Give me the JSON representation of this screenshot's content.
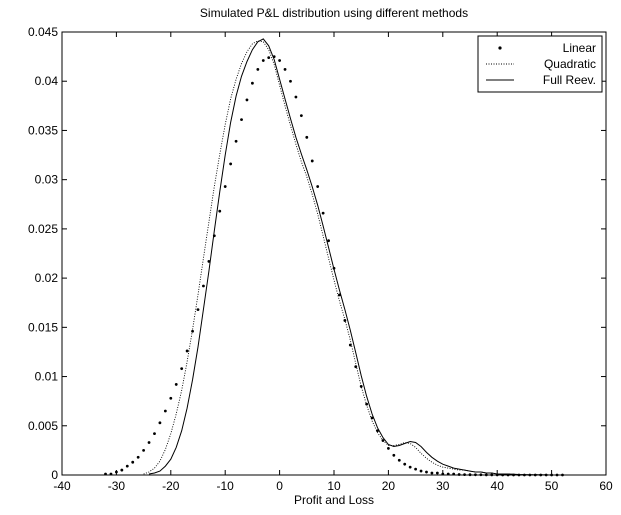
{
  "chart_data": {
    "type": "line",
    "title": "Simulated P&L distribution using different methods",
    "xlabel": "Profit and Loss",
    "ylabel": "",
    "xlim": [
      -40,
      60
    ],
    "ylim": [
      0,
      0.045
    ],
    "xticks": [
      -40,
      -30,
      -20,
      -10,
      0,
      10,
      20,
      30,
      40,
      50,
      60
    ],
    "yticks": [
      0,
      0.005,
      0.01,
      0.015,
      0.02,
      0.025,
      0.03,
      0.035,
      0.04,
      0.045
    ],
    "xtick_labels": [
      "-40",
      "-30",
      "-20",
      "-10",
      "0",
      "10",
      "20",
      "30",
      "40",
      "50",
      "60"
    ],
    "ytick_labels": [
      "0",
      "0.005",
      "0.01",
      "0.015",
      "0.02",
      "0.025",
      "0.03",
      "0.035",
      "0.04",
      "0.045"
    ],
    "grid": false,
    "legend_position": "top-right",
    "series": [
      {
        "name": "Linear",
        "style": "dots",
        "color": "#000000",
        "x": [
          -32,
          -31,
          -30,
          -29,
          -28,
          -27,
          -26,
          -25,
          -24,
          -23,
          -22,
          -21,
          -20,
          -19,
          -18,
          -17,
          -16,
          -15,
          -14,
          -13,
          -12,
          -11,
          -10,
          -9,
          -8,
          -7,
          -6,
          -5,
          -4,
          -3,
          -2,
          -1,
          0,
          1,
          2,
          3,
          4,
          5,
          6,
          7,
          8,
          9,
          10,
          11,
          12,
          13,
          14,
          15,
          16,
          17,
          18,
          19,
          20,
          21,
          22,
          23,
          24,
          25,
          26,
          27,
          28,
          29,
          30,
          31,
          32,
          33,
          34,
          35,
          36,
          37,
          38,
          39,
          40,
          41,
          42,
          43,
          44,
          45,
          46,
          47,
          48,
          49,
          50,
          51,
          52
        ],
        "y": [
          0.0001,
          0.0001,
          0.0003,
          0.0005,
          0.0009,
          0.0013,
          0.0018,
          0.0025,
          0.0033,
          0.0042,
          0.0053,
          0.0065,
          0.0078,
          0.0092,
          0.0108,
          0.0126,
          0.0146,
          0.0168,
          0.0192,
          0.0217,
          0.0243,
          0.0268,
          0.0293,
          0.0316,
          0.0339,
          0.0361,
          0.0381,
          0.0398,
          0.0412,
          0.0421,
          0.0424,
          0.0425,
          0.0421,
          0.0412,
          0.04,
          0.0384,
          0.0365,
          0.0343,
          0.0319,
          0.0293,
          0.0266,
          0.0238,
          0.021,
          0.0183,
          0.0157,
          0.0132,
          0.011,
          0.009,
          0.0072,
          0.0058,
          0.0045,
          0.0035,
          0.0027,
          0.002,
          0.0015,
          0.0011,
          0.0008,
          0.0006,
          0.0004,
          0.0003,
          0.0002,
          0.0002,
          0.0001,
          0.0001,
          0.0001,
          5e-05,
          4e-05,
          3e-05,
          2e-05,
          2e-05,
          1e-05,
          1e-05,
          1e-05,
          0,
          0,
          0,
          0,
          0,
          0,
          0,
          0,
          0,
          0,
          0,
          0
        ]
      },
      {
        "name": "Quadratic",
        "style": "dotted",
        "color": "#000000",
        "x": [
          -25,
          -24,
          -23,
          -22,
          -21,
          -20,
          -19,
          -18,
          -17,
          -16,
          -15,
          -14,
          -13,
          -12,
          -11,
          -10,
          -9,
          -8,
          -7,
          -6,
          -5,
          -4,
          -3,
          -2,
          -1,
          0,
          1,
          2,
          3,
          4,
          5,
          6,
          7,
          8,
          9,
          10,
          11,
          12,
          13,
          14,
          15,
          16,
          17,
          18,
          19,
          20,
          21,
          22,
          23,
          24,
          25,
          26,
          27,
          28,
          29,
          30,
          31,
          32,
          33,
          34,
          35,
          36,
          37,
          38,
          39,
          40,
          42,
          44,
          46,
          48,
          50
        ],
        "y": [
          0.0001,
          0.0003,
          0.0007,
          0.0014,
          0.0026,
          0.0042,
          0.0062,
          0.0086,
          0.0115,
          0.0148,
          0.0183,
          0.022,
          0.0257,
          0.0293,
          0.0326,
          0.0356,
          0.0382,
          0.0402,
          0.0418,
          0.043,
          0.0438,
          0.0441,
          0.044,
          0.0432,
          0.0417,
          0.0396,
          0.0375,
          0.0355,
          0.0336,
          0.0318,
          0.0303,
          0.0285,
          0.0265,
          0.0243,
          0.022,
          0.0198,
          0.0177,
          0.0158,
          0.0137,
          0.0113,
          0.009,
          0.0071,
          0.0055,
          0.0043,
          0.0035,
          0.003,
          0.003,
          0.0031,
          0.0033,
          0.0032,
          0.0028,
          0.0022,
          0.0017,
          0.0013,
          0.001,
          0.0008,
          0.0007,
          0.0006,
          0.0005,
          0.0005,
          0.0004,
          0.0003,
          0.0003,
          0.0002,
          0.0002,
          0.0001,
          0.0001,
          5e-05,
          3e-05,
          2e-05,
          0
        ]
      },
      {
        "name": "Full Reev.",
        "style": "solid",
        "color": "#000000",
        "x": [
          -24,
          -23,
          -22,
          -21,
          -20,
          -19,
          -18,
          -17,
          -16,
          -15,
          -14,
          -13,
          -12,
          -11,
          -10,
          -9,
          -8,
          -7,
          -6,
          -5,
          -4,
          -3,
          -2,
          -1,
          0,
          1,
          2,
          3,
          4,
          5,
          6,
          7,
          8,
          9,
          10,
          11,
          12,
          13,
          14,
          15,
          16,
          17,
          18,
          19,
          20,
          21,
          22,
          23,
          24,
          25,
          26,
          27,
          28,
          29,
          30,
          31,
          32,
          33,
          34,
          35,
          36,
          37,
          38,
          39,
          40,
          42,
          44,
          46,
          48,
          50
        ],
        "y": [
          0.0001,
          0.0002,
          0.0004,
          0.0009,
          0.0016,
          0.0028,
          0.0045,
          0.0068,
          0.0097,
          0.013,
          0.0168,
          0.0207,
          0.0248,
          0.0288,
          0.0325,
          0.0358,
          0.0385,
          0.0405,
          0.042,
          0.0432,
          0.044,
          0.0443,
          0.0436,
          0.0422,
          0.0402,
          0.0382,
          0.0362,
          0.0343,
          0.0326,
          0.031,
          0.0293,
          0.0274,
          0.0253,
          0.0231,
          0.0209,
          0.0188,
          0.0168,
          0.0147,
          0.0124,
          0.0101,
          0.008,
          0.0062,
          0.0048,
          0.0038,
          0.0031,
          0.0029,
          0.003,
          0.0032,
          0.0034,
          0.0033,
          0.0029,
          0.0023,
          0.0018,
          0.0014,
          0.0011,
          0.0009,
          0.0007,
          0.0006,
          0.0005,
          0.0004,
          0.0003,
          0.0003,
          0.0002,
          0.0002,
          0.0001,
          0.0001,
          5e-05,
          3e-05,
          2e-05,
          0
        ]
      }
    ]
  }
}
